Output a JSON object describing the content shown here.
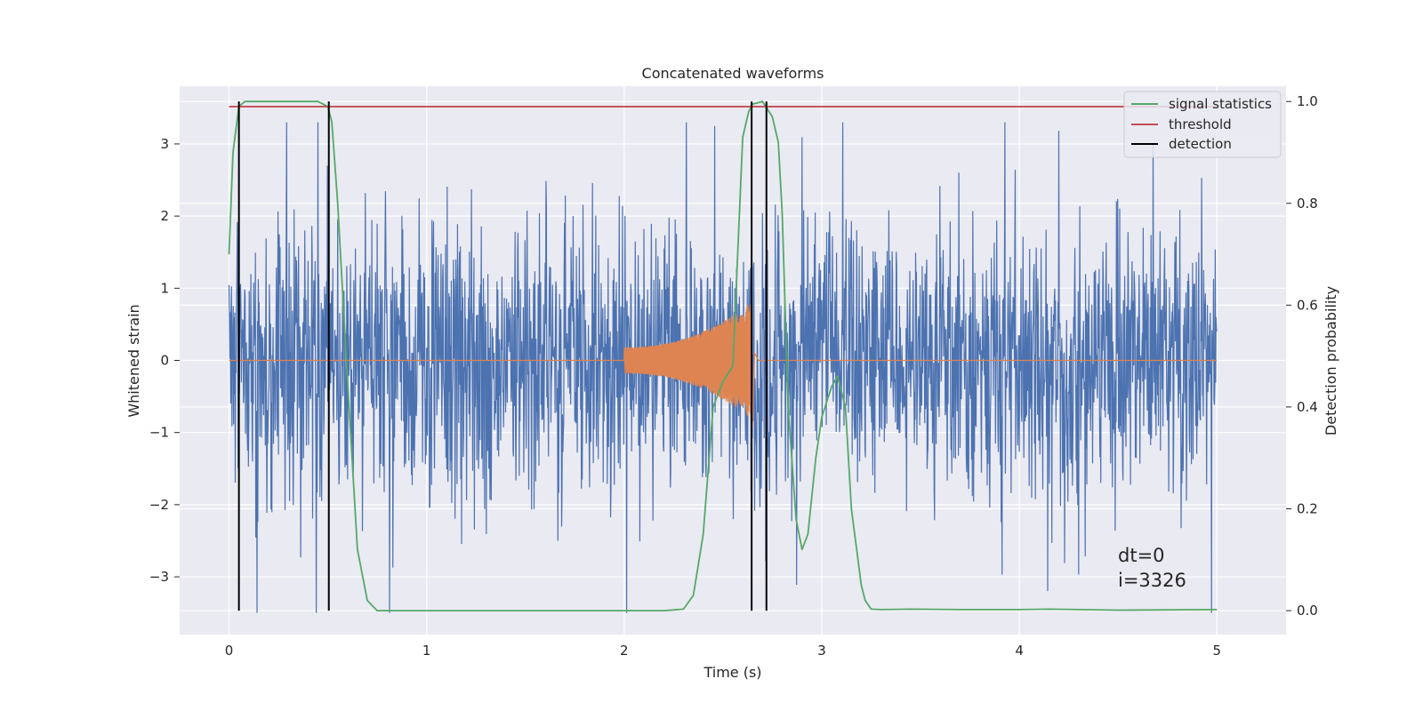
{
  "chart_data": {
    "type": "line",
    "title": "Concatenated waveforms",
    "xlabel": "Time (s)",
    "ylabel": "Whitened strain",
    "y2label": "Detection probability",
    "xlim": [
      -0.25,
      5.35
    ],
    "ylim": [
      -3.8,
      3.8
    ],
    "y2lim": [
      -0.047,
      1.03
    ],
    "xticks": [
      0,
      1,
      2,
      3,
      4,
      5
    ],
    "yticks": [
      -3,
      -2,
      -1,
      0,
      1,
      2,
      3
    ],
    "y2ticks": [
      0.0,
      0.2,
      0.4,
      0.6,
      0.8,
      1.0
    ],
    "xtick_labels": [
      "0",
      "1",
      "2",
      "3",
      "4",
      "5"
    ],
    "ytick_labels": [
      "−3",
      "−2",
      "−1",
      "0",
      "1",
      "2",
      "3"
    ],
    "y2tick_labels": [
      "0.0",
      "0.2",
      "0.4",
      "0.6",
      "0.8",
      "1.0"
    ],
    "grid": true,
    "legend_position": "top-right",
    "colors": {
      "background": "#eaeaf2",
      "grid": "#ffffff",
      "noise": "#4c72b0",
      "injection": "#dd8452",
      "signal_statistics": "#55a868",
      "threshold": "#c44e52",
      "detection": "#000000"
    },
    "series": [
      {
        "name": "signal statistics",
        "axis": "right",
        "color": "#55a868",
        "x": [
          0.0,
          0.02,
          0.05,
          0.08,
          0.1,
          0.3,
          0.45,
          0.5,
          0.52,
          0.55,
          0.6,
          0.65,
          0.7,
          0.75,
          1.0,
          1.5,
          2.0,
          2.2,
          2.3,
          2.35,
          2.4,
          2.45,
          2.5,
          2.55,
          2.6,
          2.63,
          2.65,
          2.7,
          2.75,
          2.78,
          2.8,
          2.83,
          2.87,
          2.9,
          2.93,
          2.97,
          3.0,
          3.05,
          3.08,
          3.12,
          3.15,
          3.2,
          3.22,
          3.25,
          3.3,
          3.45,
          3.7,
          4.0,
          4.15,
          4.5,
          5.0
        ],
        "y": [
          0.7,
          0.9,
          0.99,
          1.0,
          1.0,
          1.0,
          1.0,
          0.99,
          0.96,
          0.8,
          0.45,
          0.12,
          0.02,
          0.0,
          0.0,
          0.0,
          0.0,
          0.0,
          0.003,
          0.03,
          0.15,
          0.4,
          0.45,
          0.48,
          0.93,
          0.98,
          0.995,
          1.0,
          0.97,
          0.92,
          0.78,
          0.4,
          0.18,
          0.12,
          0.15,
          0.3,
          0.38,
          0.44,
          0.46,
          0.4,
          0.2,
          0.05,
          0.02,
          0.003,
          0.002,
          0.003,
          0.002,
          0.002,
          0.003,
          0.001,
          0.002
        ]
      },
      {
        "name": "threshold",
        "axis": "right",
        "color": "#c44e52",
        "x": [
          0.0,
          5.0
        ],
        "y": [
          0.99,
          0.99
        ]
      },
      {
        "name": "detection",
        "axis": "right",
        "color": "#000000",
        "type": "vlines",
        "x": [
          0.05,
          0.505,
          2.645,
          2.72
        ],
        "y_range": [
          0.0,
          1.0
        ]
      },
      {
        "name": "",
        "axis": "left",
        "color": "#4c72b0",
        "type": "noise",
        "x_range": [
          0.0,
          5.0
        ],
        "y_range": [
          -3.5,
          3.3
        ]
      },
      {
        "name": "",
        "axis": "left",
        "color": "#dd8452",
        "type": "chirp",
        "x_range": [
          2.0,
          2.64
        ],
        "envelope_start": 0.18,
        "envelope_end": 0.8
      }
    ],
    "annotations": [
      "dt=0",
      "i=3326"
    ]
  }
}
